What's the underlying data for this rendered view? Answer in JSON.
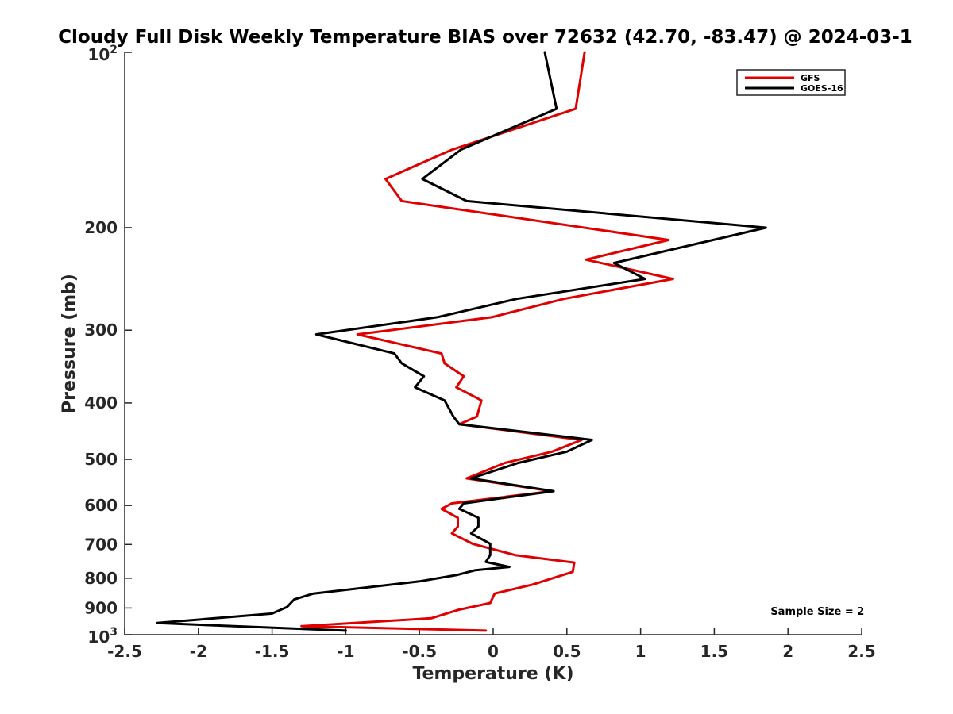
{
  "chart_data": {
    "type": "line",
    "title": "Cloudy Full Disk Weekly Temperature BIAS over 72632 (42.70, -83.47) @ 2024-03-1",
    "xlabel": "Temperature (K)",
    "ylabel": "Pressure (mb)",
    "xlim": [
      -2.5,
      2.5
    ],
    "ylim": [
      100,
      1000
    ],
    "yscale": "log",
    "y_reversed": true,
    "grid": false,
    "legend_position": "top-right",
    "x_ticks": [
      {
        "value": -2.5,
        "label": "-2.5"
      },
      {
        "value": -2,
        "label": "-2"
      },
      {
        "value": -1.5,
        "label": "-1.5"
      },
      {
        "value": -1,
        "label": "-1"
      },
      {
        "value": -0.5,
        "label": "-0.5"
      },
      {
        "value": 0,
        "label": "0"
      },
      {
        "value": 0.5,
        "label": "0.5"
      },
      {
        "value": 1,
        "label": "1"
      },
      {
        "value": 1.5,
        "label": "1.5"
      },
      {
        "value": 2,
        "label": "2"
      },
      {
        "value": 2.5,
        "label": "2.5"
      }
    ],
    "y_ticks": [
      {
        "value": 200,
        "label": "200"
      },
      {
        "value": 300,
        "label": "300"
      },
      {
        "value": 400,
        "label": "400"
      },
      {
        "value": 500,
        "label": "500"
      },
      {
        "value": 600,
        "label": "600"
      },
      {
        "value": 700,
        "label": "700"
      },
      {
        "value": 800,
        "label": "800"
      },
      {
        "value": 900,
        "label": "900"
      }
    ],
    "y_ticks_power": [
      {
        "value": 100,
        "base": "10",
        "exp": "2"
      },
      {
        "value": 1000,
        "base": "10",
        "exp": "3"
      }
    ],
    "series": [
      {
        "name": "GFS",
        "color": "#e00000",
        "x": [
          0.62,
          0.56,
          -0.28,
          -0.73,
          -0.62,
          1.19,
          0.63,
          1.22,
          0.48,
          -0.01,
          -0.92,
          -0.35,
          -0.33,
          -0.2,
          -0.25,
          -0.08,
          -0.11,
          -0.23,
          0.6,
          0.4,
          0.08,
          -0.18,
          0.4,
          -0.28,
          -0.35,
          -0.24,
          -0.24,
          -0.28,
          -0.14,
          0.15,
          0.55,
          0.54,
          0.27,
          0.01,
          -0.02,
          -0.24,
          -0.42,
          -1.3,
          -0.05
        ],
        "y": [
          100,
          125,
          147,
          165,
          180,
          210,
          227,
          245,
          265,
          285,
          305,
          329,
          342,
          360,
          376,
          396,
          422,
          435,
          463,
          485,
          507,
          539,
          567,
          595,
          608,
          630,
          652,
          670,
          698,
          730,
          752,
          780,
          820,
          850,
          882,
          907,
          937,
          967,
          984
        ]
      },
      {
        "name": "GOES-16",
        "color": "#000000",
        "x": [
          0.35,
          0.43,
          -0.22,
          -0.48,
          -0.18,
          1.85,
          0.82,
          1.03,
          0.16,
          -0.38,
          -1.2,
          -0.67,
          -0.62,
          -0.47,
          -0.53,
          -0.33,
          -0.27,
          -0.23,
          0.67,
          0.5,
          0.17,
          -0.15,
          0.41,
          -0.2,
          -0.23,
          -0.1,
          -0.1,
          -0.15,
          -0.02,
          -0.02,
          -0.05,
          0.11,
          -0.12,
          -0.25,
          -0.5,
          -1.22,
          -1.35,
          -1.4,
          -1.5,
          -2.28,
          -1.0
        ],
        "y": [
          100,
          125,
          147,
          165,
          180,
          200,
          230,
          245,
          265,
          285,
          305,
          329,
          342,
          360,
          376,
          396,
          422,
          435,
          463,
          485,
          507,
          539,
          567,
          595,
          608,
          630,
          652,
          670,
          698,
          730,
          750,
          765,
          775,
          790,
          810,
          850,
          870,
          897,
          920,
          955,
          984
        ]
      }
    ],
    "annotations": [
      {
        "text": "Sample Size = 2",
        "x": 2.2,
        "y": 925
      }
    ]
  }
}
